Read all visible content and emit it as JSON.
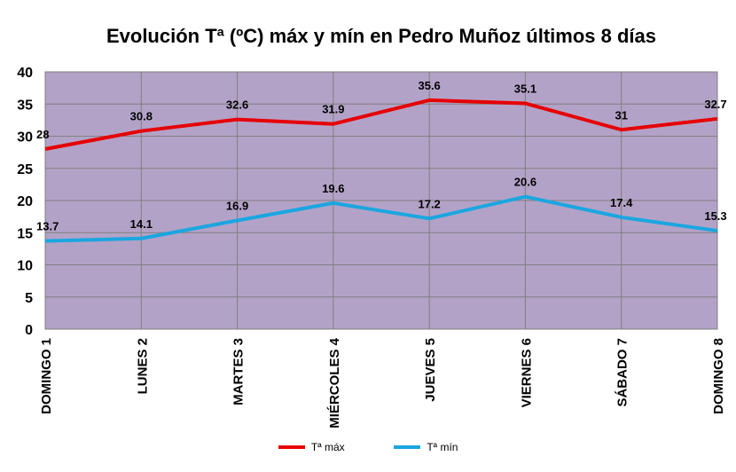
{
  "chart_data": {
    "type": "line",
    "title": "Evolución Tª (ºC) máx y mín en Pedro Muñoz últimos 8 días",
    "categories": [
      "DOMINGO 1",
      "LUNES 2",
      "MARTES 3",
      "MIÉRCOLES 4",
      "JUEVES 5",
      "VIERNES 6",
      "SÁBADO 7",
      "DOMINGO 8"
    ],
    "series": [
      {
        "name": "Tª máx",
        "color": "#e60000",
        "values": [
          28,
          30.8,
          32.6,
          31.9,
          35.6,
          35.1,
          31,
          32.7
        ]
      },
      {
        "name": "Tª mín",
        "color": "#1aa6e0",
        "values": [
          13.7,
          14.1,
          16.9,
          19.6,
          17.2,
          20.6,
          17.4,
          15.3
        ]
      }
    ],
    "ylim": [
      0,
      40
    ],
    "yticks": [
      0,
      5,
      10,
      15,
      20,
      25,
      30,
      35,
      40
    ],
    "grid": true,
    "plot_background": "#b3a2c7",
    "legend_position": "bottom"
  }
}
